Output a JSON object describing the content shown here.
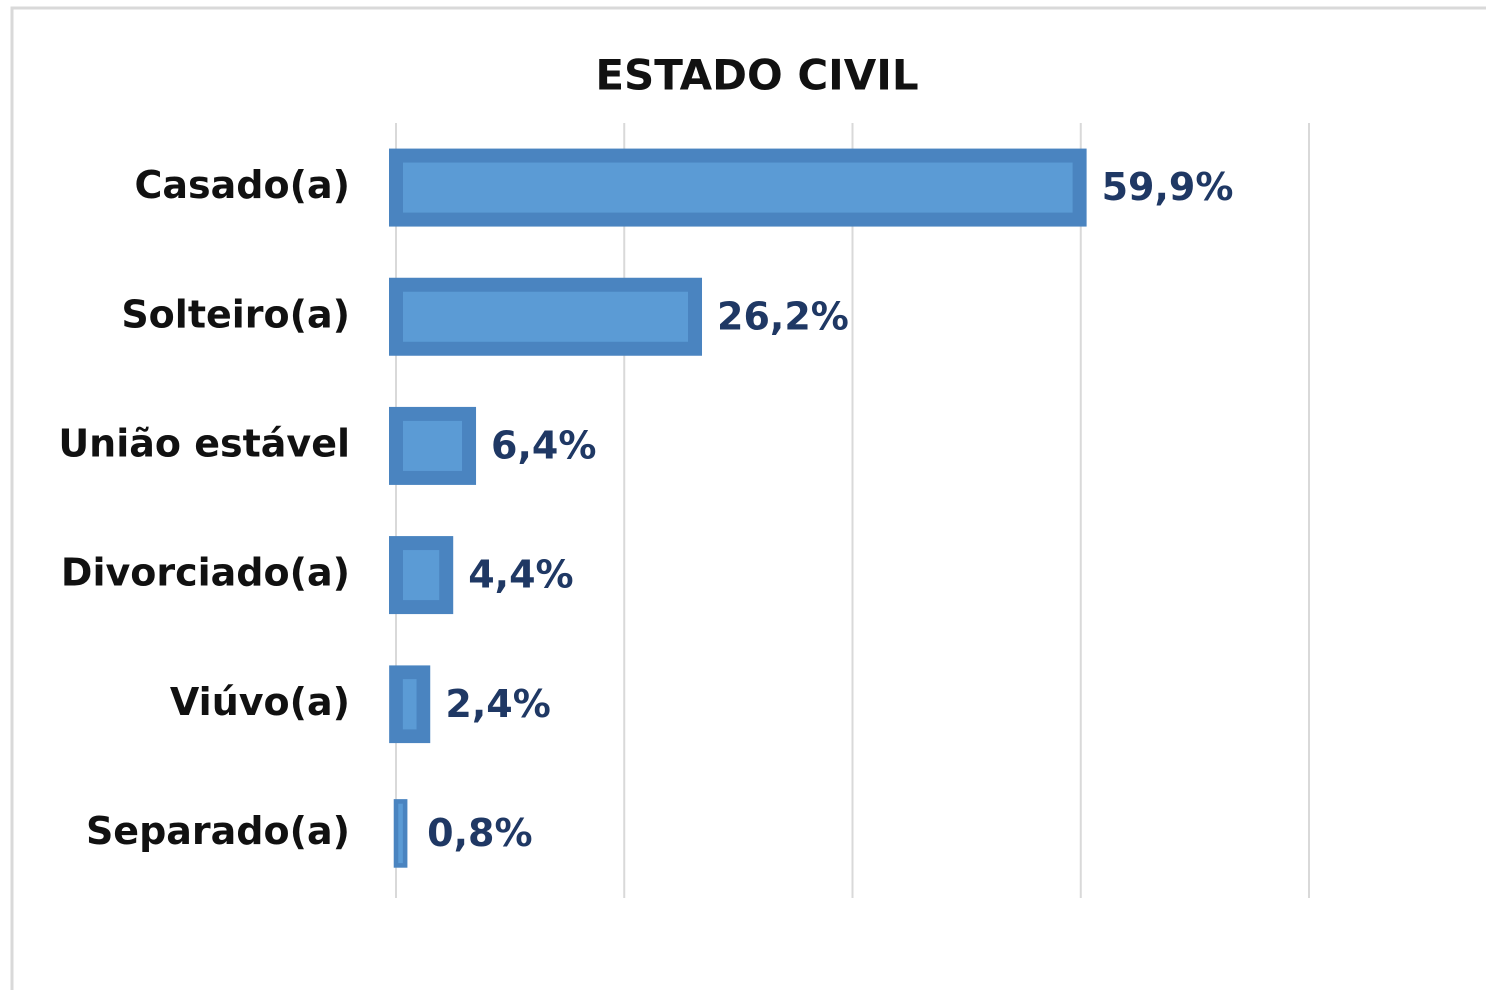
{
  "chart_data": {
    "type": "barh",
    "title": "ESTADO CIVIL",
    "categories": [
      "Casado(a)",
      "Solteiro(a)",
      "União estável",
      "Divorciado(a)",
      "Viúvo(a)",
      "Separado(a)"
    ],
    "values": [
      59.9,
      26.2,
      6.4,
      4.4,
      2.4,
      0.8
    ],
    "value_labels": [
      "59,9%",
      "26,2%",
      "6,4%",
      "4,4%",
      "2,4%",
      "0,8%"
    ],
    "color": "#5b9bd5",
    "xlim": [
      0,
      80
    ],
    "xticks": [
      0,
      20,
      40,
      60,
      80
    ],
    "grid": true
  }
}
